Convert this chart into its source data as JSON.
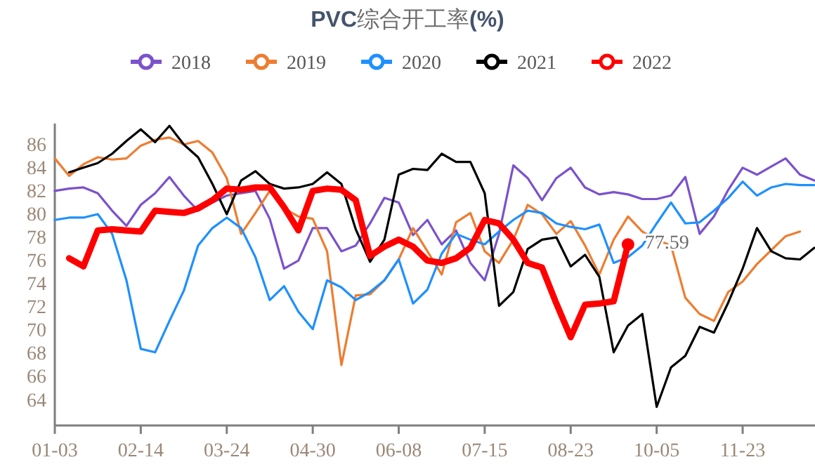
{
  "chart_data": {
    "type": "line",
    "title": "PVC综合开工率(%)",
    "legend": "top",
    "ylim": [
      62,
      88
    ],
    "yticks": [
      64,
      66,
      68,
      70,
      72,
      74,
      76,
      78,
      80,
      82,
      84,
      86
    ],
    "categories": [
      "01-03",
      null,
      null,
      null,
      null,
      null,
      "02-14",
      null,
      null,
      null,
      null,
      null,
      "03-24",
      null,
      null,
      null,
      null,
      null,
      "04-30",
      null,
      null,
      null,
      null,
      null,
      "06-08",
      null,
      null,
      null,
      null,
      null,
      "07-15",
      null,
      null,
      null,
      null,
      null,
      "08-23",
      null,
      null,
      null,
      null,
      null,
      "10-05",
      null,
      null,
      null,
      null,
      null,
      "11-23",
      null,
      null,
      null,
      null,
      null
    ],
    "series": [
      {
        "name": "2018",
        "color": "#7b52cc",
        "values": [
          82.2,
          82.4,
          82.5,
          82.0,
          80.5,
          79.2,
          81.0,
          82.0,
          83.4,
          81.8,
          80.5,
          81.2,
          81.8,
          82.0,
          82.2,
          79.8,
          75.5,
          76.2,
          79.0,
          79.0,
          77.0,
          77.5,
          79.4,
          81.6,
          81.2,
          78.4,
          79.7,
          77.6,
          78.8,
          76.0,
          74.5,
          78.5,
          84.4,
          83.3,
          81.4,
          83.3,
          84.2,
          82.5,
          81.9,
          82.1,
          81.9,
          81.5,
          81.5,
          81.8,
          83.4,
          78.5,
          80.0,
          82.3,
          84.2,
          83.6,
          84.3,
          85.0,
          83.6,
          83.1
        ]
      },
      {
        "name": "2019",
        "color": "#ed7d31",
        "values": [
          85.0,
          83.5,
          84.5,
          85.1,
          84.9,
          85.0,
          86.1,
          86.6,
          86.8,
          86.2,
          86.5,
          85.5,
          83.3,
          78.5,
          80.3,
          82.2,
          80.7,
          80.0,
          79.8,
          77.0,
          67.2,
          73.2,
          73.3,
          74.5,
          76.3,
          79.0,
          77.0,
          75.0,
          79.5,
          80.3,
          77.0,
          76.0,
          78.0,
          81.0,
          80.2,
          78.5,
          79.6,
          77.5,
          75.0,
          78.0,
          80.0,
          78.7,
          78.0,
          77.5,
          73.0,
          71.6,
          71.0,
          73.5,
          74.4,
          75.9,
          77.1,
          78.3,
          78.7,
          null
        ]
      },
      {
        "name": "2020",
        "color": "#1e90ff",
        "values": [
          79.7,
          79.9,
          79.9,
          80.2,
          78.5,
          74.5,
          68.6,
          68.3,
          71.0,
          73.6,
          77.5,
          79.0,
          79.9,
          79.0,
          76.5,
          72.8,
          74.0,
          71.8,
          70.3,
          74.5,
          73.9,
          72.8,
          73.5,
          74.5,
          76.3,
          72.5,
          73.7,
          76.8,
          78.5,
          78.0,
          77.6,
          78.7,
          79.7,
          80.5,
          80.3,
          79.4,
          79.1,
          78.9,
          79.3,
          76.0,
          76.5,
          77.5,
          79.4,
          81.2,
          79.4,
          79.5,
          80.5,
          81.6,
          83.0,
          81.8,
          82.5,
          82.8,
          82.7,
          82.7
        ]
      },
      {
        "name": "2021",
        "color": "#000000",
        "values": [
          null,
          83.8,
          84.2,
          84.6,
          85.4,
          86.5,
          87.5,
          86.4,
          87.8,
          86.2,
          85.1,
          82.8,
          80.2,
          83.1,
          83.9,
          82.8,
          82.4,
          82.5,
          82.8,
          83.8,
          82.8,
          78.9,
          76.1,
          78.0,
          83.6,
          84.1,
          84.0,
          85.4,
          84.7,
          84.7,
          82.0,
          72.3,
          73.5,
          77.2,
          78.0,
          78.2,
          75.7,
          76.7,
          74.8,
          68.3,
          70.6,
          71.6,
          63.6,
          67.0,
          68.0,
          70.5,
          70.0,
          72.6,
          75.5,
          79.0,
          77.0,
          76.4,
          76.3,
          77.3
        ]
      },
      {
        "name": "2022",
        "color": "#ff0000",
        "values": [
          null,
          76.4,
          75.7,
          78.8,
          78.9,
          78.8,
          78.7,
          80.5,
          80.4,
          80.3,
          80.7,
          81.4,
          82.4,
          82.3,
          82.5,
          82.5,
          80.8,
          78.8,
          82.2,
          82.4,
          82.3,
          81.4,
          76.6,
          77.4,
          78.0,
          77.4,
          76.2,
          76.0,
          76.4,
          77.3,
          79.7,
          79.4,
          78.0,
          76.0,
          75.6,
          72.5,
          69.6,
          72.4,
          72.5,
          72.7,
          77.59,
          null,
          null,
          null,
          null,
          null,
          null,
          null,
          null,
          null,
          null,
          null,
          null,
          null
        ],
        "value_labels": [
          null,
          null,
          null,
          null,
          null,
          null,
          null,
          null,
          null,
          null,
          null,
          null,
          null,
          null,
          null,
          null,
          null,
          null,
          null,
          null,
          null,
          null,
          null,
          null,
          null,
          null,
          null,
          null,
          null,
          null,
          null,
          null,
          null,
          null,
          null,
          null,
          null,
          null,
          null,
          null,
          "77.59",
          null,
          null,
          null,
          null,
          null,
          null,
          null,
          null,
          null,
          null,
          null,
          null,
          null
        ]
      }
    ]
  }
}
